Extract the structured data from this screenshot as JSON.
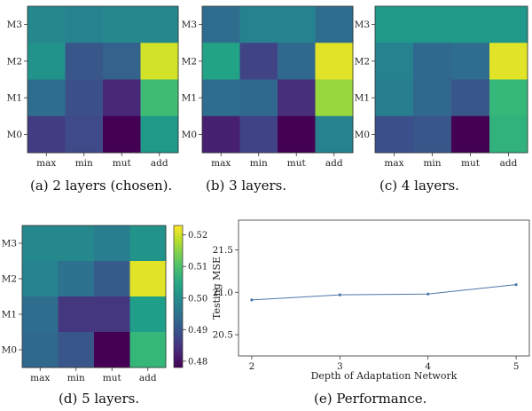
{
  "captions": {
    "a": "(a)  2 layers (chosen).",
    "b": "(b)  3 layers.",
    "c": "(c)  4 layers.",
    "d": "(d)  5 layers.",
    "e": "(e)  Performance."
  },
  "chart_data": [
    {
      "type": "heatmap",
      "id": "a",
      "x_categories": [
        "max",
        "min",
        "mut",
        "add"
      ],
      "y_categories": [
        "M3",
        "M2",
        "M1",
        "M0"
      ],
      "values": [
        [
          0.499,
          0.498,
          0.499,
          0.499
        ],
        [
          0.501,
          0.49,
          0.492,
          0.52
        ],
        [
          0.494,
          0.489,
          0.483,
          0.509
        ],
        [
          0.486,
          0.488,
          0.478,
          0.502
        ]
      ]
    },
    {
      "type": "heatmap",
      "id": "b",
      "x_categories": [
        "max",
        "min",
        "mut",
        "add"
      ],
      "y_categories": [
        "M3",
        "M2",
        "M1",
        "M0"
      ],
      "values": [
        [
          0.494,
          0.498,
          0.498,
          0.494
        ],
        [
          0.504,
          0.487,
          0.493,
          0.521
        ],
        [
          0.494,
          0.493,
          0.484,
          0.516
        ],
        [
          0.482,
          0.487,
          0.478,
          0.498
        ]
      ]
    },
    {
      "type": "heatmap",
      "id": "c",
      "x_categories": [
        "max",
        "min",
        "mut",
        "add"
      ],
      "y_categories": [
        "M3",
        "M2",
        "M1",
        "M0"
      ],
      "values": [
        [
          0.502,
          0.502,
          0.502,
          0.502
        ],
        [
          0.498,
          0.493,
          0.494,
          0.521
        ],
        [
          0.497,
          0.493,
          0.49,
          0.508
        ],
        [
          0.489,
          0.49,
          0.478,
          0.507
        ]
      ]
    },
    {
      "type": "heatmap",
      "id": "d",
      "x_categories": [
        "max",
        "min",
        "mut",
        "add"
      ],
      "y_categories": [
        "M3",
        "M2",
        "M1",
        "M0"
      ],
      "values": [
        [
          0.499,
          0.499,
          0.497,
          0.501
        ],
        [
          0.498,
          0.495,
          0.491,
          0.521
        ],
        [
          0.494,
          0.485,
          0.485,
          0.503
        ],
        [
          0.493,
          0.49,
          0.478,
          0.508
        ]
      ],
      "colorbar": {
        "min": 0.478,
        "max": 0.523,
        "ticks": [
          "0.52",
          "0.51",
          "0.50",
          "0.49",
          "0.48"
        ],
        "tick_values": [
          0.52,
          0.51,
          0.5,
          0.49,
          0.48
        ]
      }
    },
    {
      "type": "line",
      "id": "e",
      "x": [
        2,
        3,
        4,
        5
      ],
      "y": [
        20.91,
        20.97,
        20.98,
        21.09
      ],
      "xlabel": "Depth of Adaptation Network",
      "ylabel": "Testing MSE",
      "x_ticks": [
        "2",
        "3",
        "4",
        "5"
      ],
      "y_ticks": [
        "20.5",
        "21.0",
        "21.5"
      ],
      "xlim": [
        1.85,
        5.15
      ],
      "ylim": [
        20.25,
        21.85
      ],
      "color": "#4c78a8"
    }
  ]
}
